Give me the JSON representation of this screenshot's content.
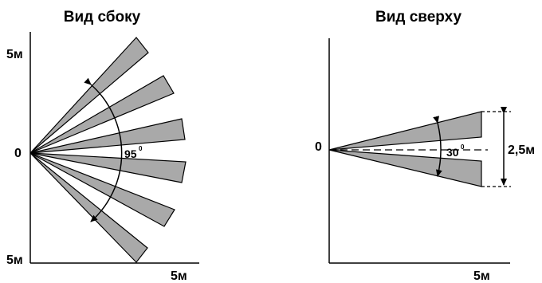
{
  "side_view": {
    "title": "Вид сбоку",
    "y_top_label": "5м",
    "origin_label": "0",
    "y_bottom_label": "5м",
    "x_label": "5м",
    "angle_value": "95",
    "angle_unit": "0"
  },
  "top_view": {
    "title": "Вид сверху",
    "origin_label": "0",
    "x_label": "5м",
    "angle_value": "30",
    "angle_unit": "0",
    "height_label": "2,5м"
  },
  "colors": {
    "beam_fill": "#a9a9a9",
    "stroke": "#000000"
  }
}
